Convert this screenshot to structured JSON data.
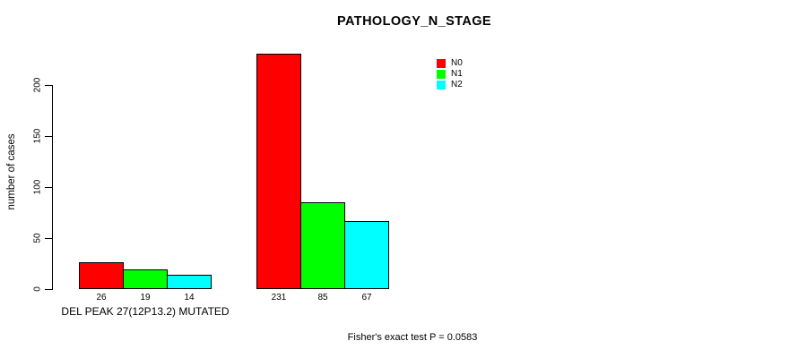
{
  "chart_data": {
    "type": "bar",
    "title": "PATHOLOGY_N_STAGE",
    "ylabel": "number of cases",
    "xlabel": "",
    "ylim": [
      0,
      235
    ],
    "yticks": [
      0,
      50,
      100,
      150,
      200
    ],
    "grid": false,
    "categories": [
      "DEL PEAK 27(12P13.2) MUTATED",
      ""
    ],
    "series": [
      {
        "name": "N0",
        "color": "#ff0000",
        "values": [
          26,
          231
        ]
      },
      {
        "name": "N1",
        "color": "#00ff00",
        "values": [
          19,
          85
        ]
      },
      {
        "name": "N2",
        "color": "#00ffff",
        "values": [
          14,
          67
        ]
      }
    ],
    "bar_value_labels": [
      [
        26,
        19,
        14
      ],
      [
        231,
        85,
        67
      ]
    ],
    "legend": {
      "position": "top-right",
      "entries": [
        {
          "label": "N0",
          "color": "#ff0000"
        },
        {
          "label": "N1",
          "color": "#00ff00"
        },
        {
          "label": "N2",
          "color": "#00ffff"
        }
      ]
    },
    "annotation": "Fisher's exact test P = 0.0583"
  },
  "colors": {
    "background": "#ffffff",
    "text": "#000000",
    "bar_border": "#000000"
  }
}
